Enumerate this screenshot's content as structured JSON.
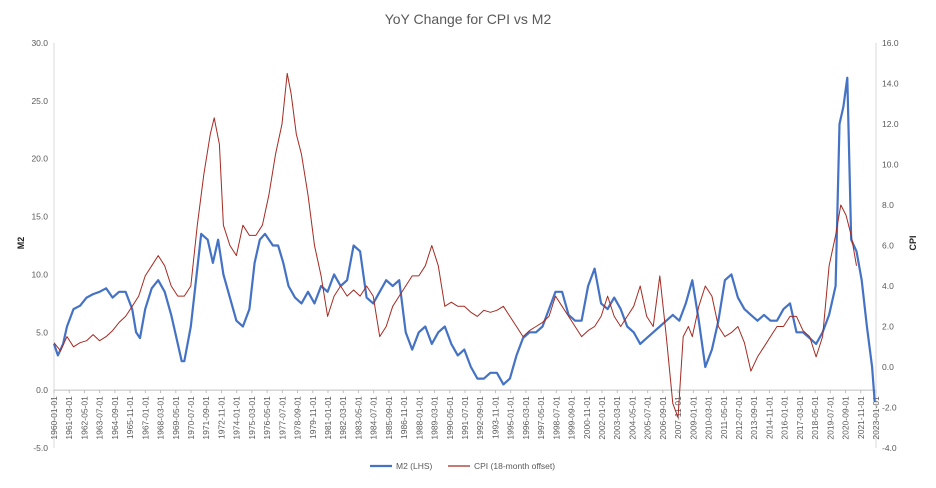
{
  "chart_data": {
    "type": "line",
    "title": "YoY Change for CPI vs M2",
    "ylabel_left": "M2",
    "ylabel_right": "CPI",
    "ylim_left": [
      -5,
      30
    ],
    "ylim_right": [
      -4,
      16
    ],
    "left_ticks": [
      "-5.0",
      "0.0",
      "5.0",
      "10.0",
      "15.0",
      "20.0",
      "25.0",
      "30.0"
    ],
    "right_ticks": [
      "-4.0",
      "-2.0",
      "0.0",
      "2.0",
      "4.0",
      "6.0",
      "8.0",
      "10.0",
      "12.0",
      "14.0",
      "16.0"
    ],
    "x_tick_labels": [
      "1960-01-01",
      "1961-03-01",
      "1962-05-01",
      "1963-07-01",
      "1964-09-01",
      "1965-11-01",
      "1967-01-01",
      "1968-03-01",
      "1969-05-01",
      "1970-07-01",
      "1971-09-01",
      "1972-11-01",
      "1974-01-01",
      "1975-03-01",
      "1976-05-01",
      "1977-07-01",
      "1978-09-01",
      "1979-11-01",
      "1981-01-01",
      "1982-03-01",
      "1983-05-01",
      "1984-07-01",
      "1985-09-01",
      "1986-11-01",
      "1988-01-01",
      "1989-03-01",
      "1990-05-01",
      "1991-07-01",
      "1992-09-01",
      "1993-11-01",
      "1995-01-01",
      "1996-03-01",
      "1997-05-01",
      "1998-07-01",
      "1999-09-01",
      "2000-11-01",
      "2002-01-01",
      "2003-03-01",
      "2004-05-01",
      "2005-07-01",
      "2006-09-01",
      "2007-11-01",
      "2009-01-01",
      "2010-03-01",
      "2011-05-01",
      "2012-07-01",
      "2013-09-01",
      "2014-11-01",
      "2016-01-01",
      "2017-03-01",
      "2018-05-01",
      "2019-07-01",
      "2020-09-01",
      "2021-11-01",
      "2023-01-01"
    ],
    "x_range": [
      1960.0,
      2023.1
    ],
    "gridlines": false,
    "legend_position": "bottom",
    "series": [
      {
        "name": "M2 (LHS)",
        "axis": "left",
        "color": "#4472C4",
        "points": [
          [
            1960.0,
            4.0
          ],
          [
            1960.3,
            3.0
          ],
          [
            1960.7,
            4.0
          ],
          [
            1961.0,
            5.5
          ],
          [
            1961.5,
            7.0
          ],
          [
            1962.0,
            7.3
          ],
          [
            1962.5,
            8.0
          ],
          [
            1963.0,
            8.3
          ],
          [
            1963.5,
            8.5
          ],
          [
            1964.0,
            8.8
          ],
          [
            1964.5,
            8.0
          ],
          [
            1965.0,
            8.5
          ],
          [
            1965.5,
            8.5
          ],
          [
            1966.0,
            7.0
          ],
          [
            1966.3,
            5.0
          ],
          [
            1966.6,
            4.5
          ],
          [
            1967.0,
            7.0
          ],
          [
            1967.5,
            8.8
          ],
          [
            1968.0,
            9.5
          ],
          [
            1968.5,
            8.5
          ],
          [
            1969.0,
            6.5
          ],
          [
            1969.5,
            4.0
          ],
          [
            1969.8,
            2.5
          ],
          [
            1970.0,
            2.5
          ],
          [
            1970.5,
            5.5
          ],
          [
            1971.0,
            10.5
          ],
          [
            1971.3,
            13.5
          ],
          [
            1971.8,
            13.0
          ],
          [
            1972.2,
            11.0
          ],
          [
            1972.6,
            13.0
          ],
          [
            1973.0,
            10.0
          ],
          [
            1973.5,
            8.0
          ],
          [
            1974.0,
            6.0
          ],
          [
            1974.5,
            5.5
          ],
          [
            1975.0,
            7.0
          ],
          [
            1975.4,
            11.0
          ],
          [
            1975.8,
            13.0
          ],
          [
            1976.2,
            13.5
          ],
          [
            1976.8,
            12.5
          ],
          [
            1977.2,
            12.5
          ],
          [
            1977.6,
            11.0
          ],
          [
            1978.0,
            9.0
          ],
          [
            1978.5,
            8.0
          ],
          [
            1979.0,
            7.5
          ],
          [
            1979.5,
            8.5
          ],
          [
            1980.0,
            7.5
          ],
          [
            1980.5,
            9.0
          ],
          [
            1981.0,
            8.5
          ],
          [
            1981.5,
            10.0
          ],
          [
            1982.0,
            9.0
          ],
          [
            1982.5,
            9.5
          ],
          [
            1983.0,
            12.5
          ],
          [
            1983.5,
            12.0
          ],
          [
            1984.0,
            8.0
          ],
          [
            1984.5,
            7.5
          ],
          [
            1985.0,
            8.5
          ],
          [
            1985.5,
            9.5
          ],
          [
            1986.0,
            9.0
          ],
          [
            1986.5,
            9.5
          ],
          [
            1987.0,
            5.0
          ],
          [
            1987.5,
            3.5
          ],
          [
            1988.0,
            5.0
          ],
          [
            1988.5,
            5.5
          ],
          [
            1989.0,
            4.0
          ],
          [
            1989.5,
            5.0
          ],
          [
            1990.0,
            5.5
          ],
          [
            1990.5,
            4.0
          ],
          [
            1991.0,
            3.0
          ],
          [
            1991.5,
            3.5
          ],
          [
            1992.0,
            2.0
          ],
          [
            1992.5,
            1.0
          ],
          [
            1993.0,
            1.0
          ],
          [
            1993.5,
            1.5
          ],
          [
            1994.0,
            1.5
          ],
          [
            1994.5,
            0.5
          ],
          [
            1995.0,
            1.0
          ],
          [
            1995.5,
            3.0
          ],
          [
            1996.0,
            4.5
          ],
          [
            1996.5,
            5.0
          ],
          [
            1997.0,
            5.0
          ],
          [
            1997.5,
            5.5
          ],
          [
            1998.0,
            7.0
          ],
          [
            1998.5,
            8.5
          ],
          [
            1999.0,
            8.5
          ],
          [
            1999.5,
            6.5
          ],
          [
            2000.0,
            6.0
          ],
          [
            2000.5,
            6.0
          ],
          [
            2001.0,
            9.0
          ],
          [
            2001.5,
            10.5
          ],
          [
            2002.0,
            7.5
          ],
          [
            2002.5,
            7.0
          ],
          [
            2003.0,
            8.0
          ],
          [
            2003.5,
            7.0
          ],
          [
            2004.0,
            5.5
          ],
          [
            2004.5,
            5.0
          ],
          [
            2005.0,
            4.0
          ],
          [
            2005.5,
            4.5
          ],
          [
            2006.0,
            5.0
          ],
          [
            2006.5,
            5.5
          ],
          [
            2007.0,
            6.0
          ],
          [
            2007.5,
            6.5
          ],
          [
            2008.0,
            6.0
          ],
          [
            2008.5,
            7.5
          ],
          [
            2009.0,
            9.5
          ],
          [
            2009.5,
            6.0
          ],
          [
            2010.0,
            2.0
          ],
          [
            2010.5,
            3.5
          ],
          [
            2011.0,
            6.0
          ],
          [
            2011.5,
            9.5
          ],
          [
            2012.0,
            10.0
          ],
          [
            2012.5,
            8.0
          ],
          [
            2013.0,
            7.0
          ],
          [
            2013.5,
            6.5
          ],
          [
            2014.0,
            6.0
          ],
          [
            2014.5,
            6.5
          ],
          [
            2015.0,
            6.0
          ],
          [
            2015.5,
            6.0
          ],
          [
            2016.0,
            7.0
          ],
          [
            2016.5,
            7.5
          ],
          [
            2017.0,
            5.0
          ],
          [
            2017.5,
            5.0
          ],
          [
            2018.0,
            4.5
          ],
          [
            2018.5,
            4.0
          ],
          [
            2019.0,
            5.0
          ],
          [
            2019.5,
            6.5
          ],
          [
            2020.0,
            9.0
          ],
          [
            2020.3,
            23.0
          ],
          [
            2020.6,
            24.5
          ],
          [
            2020.9,
            27.0
          ],
          [
            2021.2,
            13.0
          ],
          [
            2021.6,
            12.0
          ],
          [
            2022.0,
            9.5
          ],
          [
            2022.4,
            5.5
          ],
          [
            2022.8,
            2.0
          ],
          [
            2023.0,
            -1.0
          ]
        ]
      },
      {
        "name": "CPI (18-month offset)",
        "axis": "right",
        "color": "#A52A22",
        "points": [
          [
            1960.0,
            1.2
          ],
          [
            1960.5,
            0.8
          ],
          [
            1961.0,
            1.5
          ],
          [
            1961.5,
            1.0
          ],
          [
            1962.0,
            1.2
          ],
          [
            1962.5,
            1.3
          ],
          [
            1963.0,
            1.6
          ],
          [
            1963.5,
            1.3
          ],
          [
            1964.0,
            1.5
          ],
          [
            1964.5,
            1.8
          ],
          [
            1965.0,
            2.2
          ],
          [
            1965.5,
            2.5
          ],
          [
            1966.0,
            3.0
          ],
          [
            1966.5,
            3.5
          ],
          [
            1967.0,
            4.5
          ],
          [
            1967.5,
            5.0
          ],
          [
            1968.0,
            5.5
          ],
          [
            1968.5,
            5.0
          ],
          [
            1969.0,
            4.0
          ],
          [
            1969.5,
            3.5
          ],
          [
            1970.0,
            3.5
          ],
          [
            1970.5,
            4.0
          ],
          [
            1971.0,
            7.0
          ],
          [
            1971.5,
            9.5
          ],
          [
            1972.0,
            11.5
          ],
          [
            1972.3,
            12.3
          ],
          [
            1972.7,
            11.0
          ],
          [
            1973.0,
            7.0
          ],
          [
            1973.5,
            6.0
          ],
          [
            1974.0,
            5.5
          ],
          [
            1974.5,
            7.0
          ],
          [
            1975.0,
            6.5
          ],
          [
            1975.5,
            6.5
          ],
          [
            1976.0,
            7.0
          ],
          [
            1976.5,
            8.5
          ],
          [
            1977.0,
            10.5
          ],
          [
            1977.5,
            12.0
          ],
          [
            1977.9,
            14.5
          ],
          [
            1978.2,
            13.5
          ],
          [
            1978.6,
            11.5
          ],
          [
            1979.0,
            10.5
          ],
          [
            1979.5,
            8.5
          ],
          [
            1980.0,
            6.0
          ],
          [
            1980.5,
            4.5
          ],
          [
            1981.0,
            2.5
          ],
          [
            1981.5,
            3.5
          ],
          [
            1982.0,
            4.0
          ],
          [
            1982.5,
            3.5
          ],
          [
            1983.0,
            3.8
          ],
          [
            1983.5,
            3.5
          ],
          [
            1984.0,
            4.0
          ],
          [
            1984.5,
            3.5
          ],
          [
            1985.0,
            1.5
          ],
          [
            1985.5,
            2.0
          ],
          [
            1986.0,
            3.0
          ],
          [
            1986.5,
            3.5
          ],
          [
            1987.0,
            4.0
          ],
          [
            1987.5,
            4.5
          ],
          [
            1988.0,
            4.5
          ],
          [
            1988.5,
            5.0
          ],
          [
            1989.0,
            6.0
          ],
          [
            1989.5,
            5.0
          ],
          [
            1990.0,
            3.0
          ],
          [
            1990.5,
            3.2
          ],
          [
            1991.0,
            3.0
          ],
          [
            1991.5,
            3.0
          ],
          [
            1992.0,
            2.7
          ],
          [
            1992.5,
            2.5
          ],
          [
            1993.0,
            2.8
          ],
          [
            1993.5,
            2.7
          ],
          [
            1994.0,
            2.8
          ],
          [
            1994.5,
            3.0
          ],
          [
            1995.0,
            2.5
          ],
          [
            1995.5,
            2.0
          ],
          [
            1996.0,
            1.5
          ],
          [
            1996.5,
            1.8
          ],
          [
            1997.0,
            2.0
          ],
          [
            1997.5,
            2.2
          ],
          [
            1998.0,
            2.5
          ],
          [
            1998.5,
            3.5
          ],
          [
            1999.0,
            3.0
          ],
          [
            1999.5,
            2.5
          ],
          [
            2000.0,
            2.0
          ],
          [
            2000.5,
            1.5
          ],
          [
            2001.0,
            1.8
          ],
          [
            2001.5,
            2.0
          ],
          [
            2002.0,
            2.5
          ],
          [
            2002.5,
            3.5
          ],
          [
            2003.0,
            2.5
          ],
          [
            2003.5,
            2.0
          ],
          [
            2004.0,
            2.5
          ],
          [
            2004.5,
            3.0
          ],
          [
            2005.0,
            4.0
          ],
          [
            2005.5,
            2.5
          ],
          [
            2006.0,
            2.0
          ],
          [
            2006.5,
            4.5
          ],
          [
            2007.0,
            1.5
          ],
          [
            2007.5,
            -1.8
          ],
          [
            2007.9,
            -2.5
          ],
          [
            2008.3,
            1.5
          ],
          [
            2008.7,
            2.0
          ],
          [
            2009.0,
            1.5
          ],
          [
            2009.5,
            3.0
          ],
          [
            2010.0,
            4.0
          ],
          [
            2010.5,
            3.5
          ],
          [
            2011.0,
            2.0
          ],
          [
            2011.5,
            1.5
          ],
          [
            2012.0,
            1.7
          ],
          [
            2012.5,
            2.0
          ],
          [
            2013.0,
            1.2
          ],
          [
            2013.5,
            -0.2
          ],
          [
            2014.0,
            0.5
          ],
          [
            2014.5,
            1.0
          ],
          [
            2015.0,
            1.5
          ],
          [
            2015.5,
            2.0
          ],
          [
            2016.0,
            2.0
          ],
          [
            2016.5,
            2.5
          ],
          [
            2017.0,
            2.5
          ],
          [
            2017.5,
            1.8
          ],
          [
            2018.0,
            1.5
          ],
          [
            2018.5,
            0.5
          ],
          [
            2019.0,
            1.5
          ],
          [
            2019.5,
            5.0
          ],
          [
            2020.0,
            6.5
          ],
          [
            2020.4,
            8.0
          ],
          [
            2020.8,
            7.5
          ],
          [
            2021.2,
            6.5
          ],
          [
            2021.6,
            5.0
          ]
        ]
      }
    ]
  }
}
